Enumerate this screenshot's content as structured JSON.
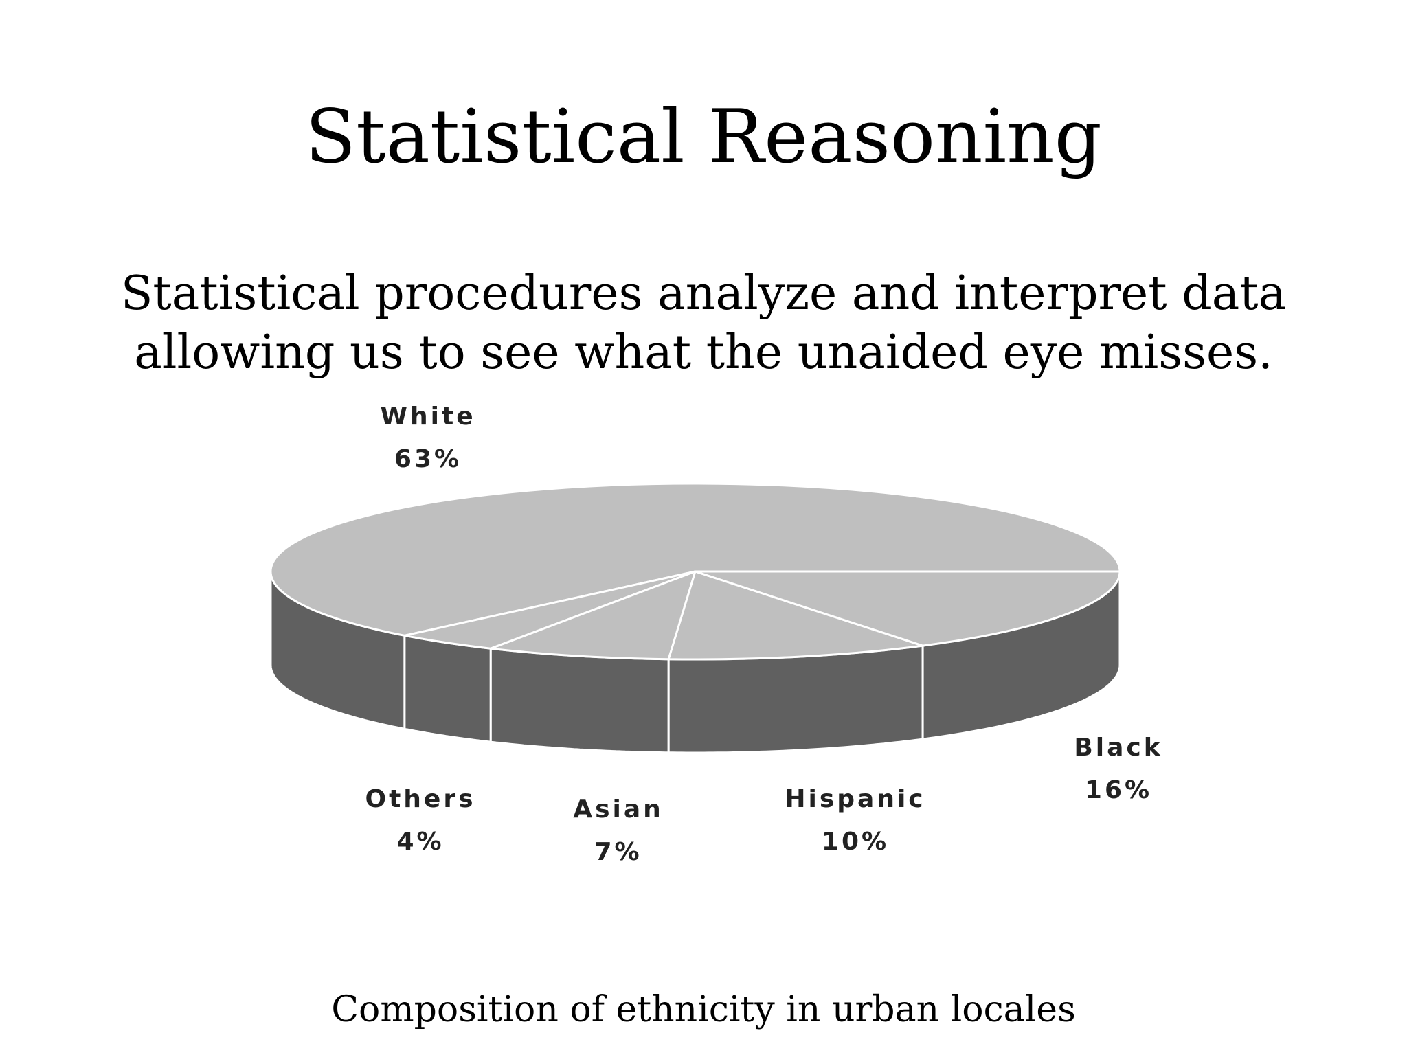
{
  "slide": {
    "title": "Statistical Reasoning",
    "body_line1": "Statistical procedures analyze and interpret data",
    "body_line2": "allowing us to see what the unaided eye misses.",
    "caption": "Composition of ethnicity in urban locales"
  },
  "chart_data": {
    "type": "pie",
    "style": "3d",
    "categories": [
      "White",
      "Black",
      "Hispanic",
      "Asian",
      "Others"
    ],
    "values": [
      63,
      16,
      10,
      7,
      4
    ],
    "value_labels": [
      "63%",
      "16%",
      "10%",
      "7%",
      "4%"
    ],
    "top_color": "#bfbfbf",
    "side_color": "#606060",
    "separator_color": "#ffffff"
  }
}
